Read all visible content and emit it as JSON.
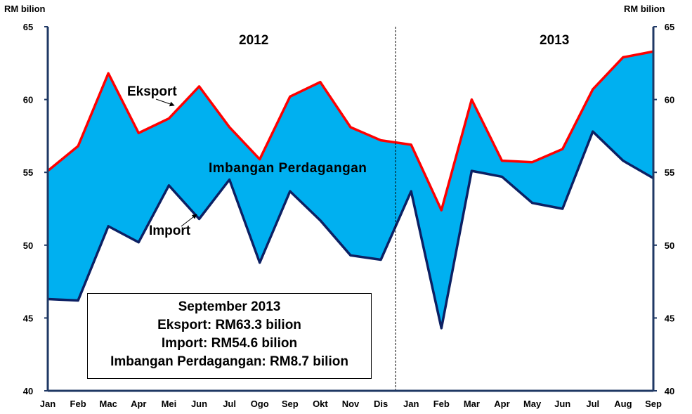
{
  "chart_data": {
    "type": "area",
    "left_unit": "RM bilion",
    "right_unit": "RM bilion",
    "ylim": [
      40,
      65
    ],
    "yticks": [
      40,
      45,
      50,
      55,
      60,
      65
    ],
    "year_labels": [
      "2012",
      "2013"
    ],
    "categories": [
      "Jan",
      "Feb",
      "Mac",
      "Apr",
      "Mei",
      "Jun",
      "Jul",
      "Ogo",
      "Sep",
      "Okt",
      "Nov",
      "Dis",
      "Jan",
      "Feb",
      "Mar",
      "Apr",
      "May",
      "Jun",
      "Jul",
      "Aug",
      "Sep"
    ],
    "series": [
      {
        "name": "Eksport",
        "values": [
          55.1,
          56.8,
          61.8,
          57.7,
          58.7,
          60.9,
          58.1,
          55.9,
          60.2,
          61.2,
          58.1,
          57.2,
          56.9,
          52.4,
          60.0,
          55.8,
          55.7,
          56.6,
          60.7,
          62.9,
          63.3
        ]
      },
      {
        "name": "Import",
        "values": [
          46.3,
          46.2,
          51.3,
          50.2,
          54.1,
          51.8,
          54.5,
          48.8,
          53.7,
          51.7,
          49.3,
          49.0,
          53.7,
          44.3,
          55.1,
          54.7,
          52.9,
          52.5,
          57.8,
          55.8,
          54.6
        ]
      }
    ],
    "area_label": "Imbangan Perdagangan",
    "colors": {
      "eksport": "#ff0000",
      "import": "#0c2063",
      "fill": "#00b0f0",
      "axis": "#1f3864"
    }
  },
  "info_box": {
    "title": "September 2013",
    "eksport": "Eksport: RM63.3 bilion",
    "import": "Import: RM54.6 bilion",
    "imbangan": "Imbangan Perdagangan: RM8.7 bilion"
  }
}
